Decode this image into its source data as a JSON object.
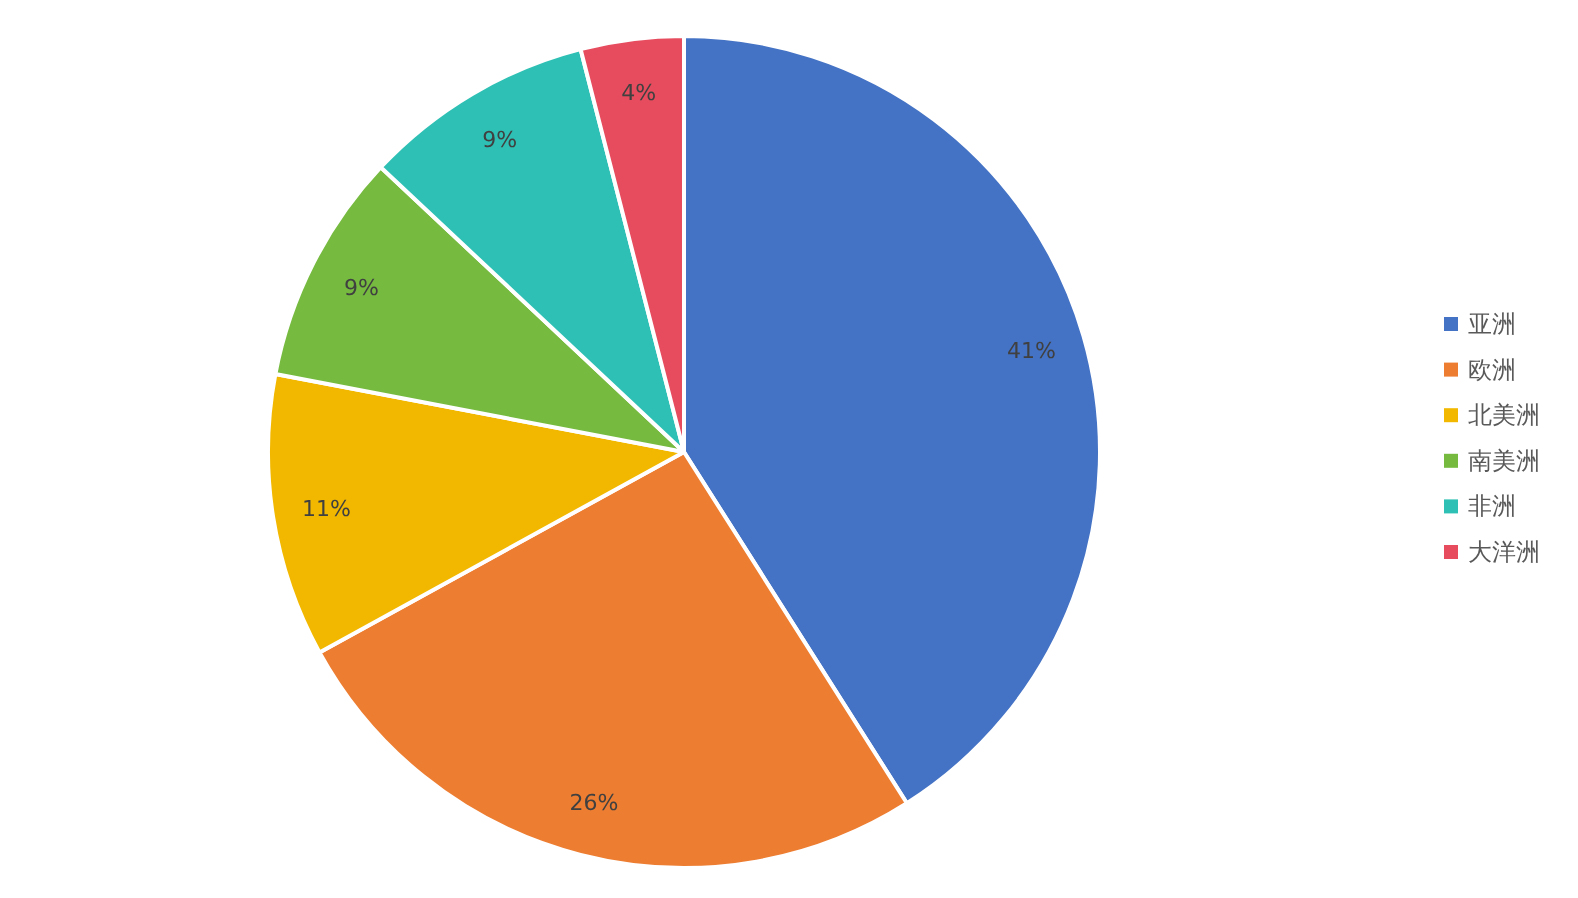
{
  "chart_data": {
    "type": "pie",
    "categories": [
      "亚洲",
      "欧洲",
      "北美洲",
      "南美洲",
      "非洲",
      "大洋洲"
    ],
    "values": [
      41,
      26,
      11,
      9,
      9,
      4
    ],
    "value_labels": [
      "41%",
      "26%",
      "11%",
      "9%",
      "9%",
      "4%"
    ],
    "colors": [
      "#4472c4",
      "#ed7d31",
      "#f2b800",
      "#76bb40",
      "#2ec0b4",
      "#e64c5e"
    ],
    "legend": "right"
  }
}
